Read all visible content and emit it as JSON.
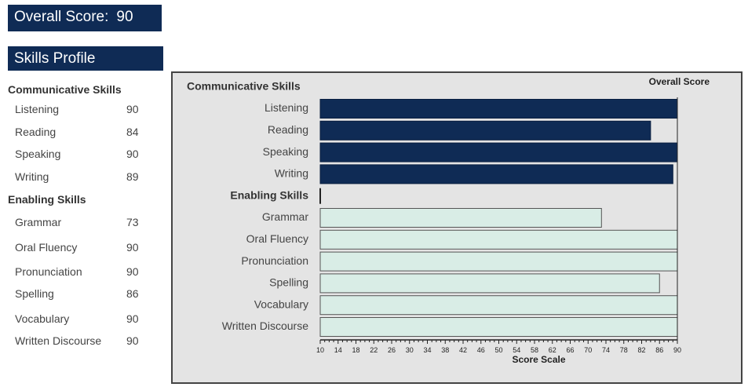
{
  "header": {
    "overall_label": "Overall Score:",
    "overall_value": "90"
  },
  "profile": {
    "title": "Skills Profile"
  },
  "sections": [
    {
      "title": "Communicative Skills",
      "skills": [
        {
          "label": "Listening",
          "score": "90"
        },
        {
          "label": "Reading",
          "score": "84"
        },
        {
          "label": "Speaking",
          "score": "90"
        },
        {
          "label": "Writing",
          "score": "89"
        }
      ]
    },
    {
      "title": "Enabling Skills",
      "skills": [
        {
          "label": "Grammar",
          "score": "73"
        },
        {
          "label": "Oral Fluency",
          "score": "90"
        },
        {
          "label": "Pronunciation",
          "score": "90"
        },
        {
          "label": "Spelling",
          "score": "86"
        },
        {
          "label": "Vocabulary",
          "score": "90"
        },
        {
          "label": "Written Discourse",
          "score": "90"
        }
      ]
    }
  ],
  "chart_data": {
    "type": "bar",
    "orientation": "horizontal",
    "title": "",
    "xlabel": "Score Scale",
    "ylabel": "",
    "marker_label": "Overall Score",
    "marker_value": 90,
    "xlim": [
      10,
      90
    ],
    "xticks": [
      10,
      14,
      18,
      22,
      26,
      30,
      34,
      38,
      42,
      46,
      50,
      54,
      58,
      62,
      66,
      70,
      74,
      78,
      82,
      86,
      90
    ],
    "grid": false,
    "groups": [
      {
        "title": "Communicative Skills",
        "color": "#0f2b55",
        "categories": [
          "Listening",
          "Reading",
          "Speaking",
          "Writing"
        ],
        "values": [
          90,
          84,
          90,
          89
        ]
      },
      {
        "title": "Enabling Skills",
        "color": "#d9ede6",
        "categories": [
          "Grammar",
          "Oral Fluency",
          "Pronunciation",
          "Spelling",
          "Vocabulary",
          "Written Discourse"
        ],
        "values": [
          73,
          90,
          90,
          86,
          90,
          90
        ]
      }
    ]
  }
}
